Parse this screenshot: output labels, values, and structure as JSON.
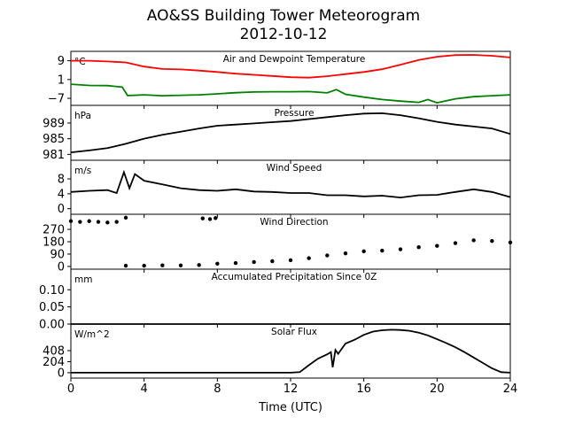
{
  "figure": {
    "title": "AO&SS Building Tower Meteorogram",
    "date": "2012-10-12",
    "xlabel": "Time (UTC)"
  },
  "chart_data": [
    {
      "type": "line",
      "title": "Air and Dewpoint Temperature",
      "unit": "°C",
      "x_ticks": [
        0,
        4,
        8,
        12,
        16,
        20,
        24
      ],
      "y_ticks": [
        9,
        1,
        -7
      ],
      "ylim": [
        -10,
        13
      ],
      "series": [
        {
          "color": "#ff0000",
          "x": [
            0,
            1,
            2,
            3,
            4,
            5,
            6,
            7,
            8,
            9,
            10,
            11,
            12,
            13,
            14,
            15,
            16,
            17,
            18,
            19,
            20,
            21,
            22,
            23,
            24
          ],
          "y": [
            9,
            9,
            8.7,
            8.3,
            6.5,
            5.5,
            5.3,
            4.8,
            4.2,
            3.5,
            3,
            2.5,
            2,
            1.8,
            2.4,
            3.3,
            4.2,
            5.4,
            7.3,
            9.3,
            10.7,
            11.4,
            11.5,
            11.1,
            10.4
          ]
        },
        {
          "color": "#008000",
          "x": [
            0,
            1,
            2,
            2.8,
            3.1,
            4,
            5,
            6,
            7,
            8,
            9,
            10,
            11,
            12,
            13,
            14,
            14.5,
            15,
            16,
            17,
            18,
            19,
            19.5,
            20,
            21,
            22,
            23,
            24
          ],
          "y": [
            -1,
            -1.5,
            -1.6,
            -2.2,
            -5.8,
            -5.5,
            -5.9,
            -5.7,
            -5.5,
            -5.1,
            -4.6,
            -4.3,
            -4.2,
            -4.2,
            -4.1,
            -4.7,
            -3.3,
            -5.3,
            -6.5,
            -7.5,
            -8.2,
            -8.7,
            -7.5,
            -8.9,
            -7.2,
            -6.3,
            -5.9,
            -5.5
          ]
        }
      ]
    },
    {
      "type": "line",
      "title": "Pressure",
      "unit": "hPa",
      "y_ticks": [
        989,
        985,
        981
      ],
      "ylim": [
        979.5,
        993.5
      ],
      "series": [
        {
          "color": "#000000",
          "x": [
            0,
            1,
            2,
            3,
            4,
            5,
            6,
            7,
            8,
            9,
            10,
            11,
            12,
            13,
            14,
            15,
            16,
            17,
            18,
            19,
            20,
            21,
            22,
            23,
            24
          ],
          "y": [
            981.5,
            982,
            982.6,
            983.7,
            985,
            986,
            986.8,
            987.6,
            988.3,
            988.6,
            988.9,
            989.2,
            989.5,
            990,
            990.5,
            991,
            991.4,
            991.5,
            991,
            990.2,
            989.3,
            988.6,
            988.1,
            987.6,
            986.2
          ]
        }
      ]
    },
    {
      "type": "line",
      "title": "Wind Speed",
      "unit": "m/s",
      "y_ticks": [
        8,
        4,
        0
      ],
      "ylim": [
        -1.5,
        13
      ],
      "series": [
        {
          "color": "#000000",
          "x": [
            0,
            1,
            2,
            2.5,
            2.9,
            3.2,
            3.5,
            4,
            5,
            6,
            7,
            8,
            9,
            10,
            11,
            12,
            13,
            14,
            15,
            16,
            17,
            18,
            19,
            20,
            21,
            22,
            23,
            24
          ],
          "y": [
            4.5,
            4.8,
            5,
            4.2,
            9.8,
            5.5,
            9.3,
            7.5,
            6.5,
            5.5,
            5,
            4.8,
            5.2,
            4.6,
            4.5,
            4.2,
            4.2,
            3.6,
            3.6,
            3.3,
            3.5,
            3,
            3.6,
            3.7,
            4.5,
            5.2,
            4.5,
            3.1
          ]
        }
      ]
    },
    {
      "type": "scatter",
      "title": "Wind Direction",
      "y_ticks": [
        270,
        180,
        90,
        0
      ],
      "ylim": [
        -20,
        380
      ],
      "series": [
        {
          "color": "#000000",
          "x": [
            0,
            0.5,
            1,
            1.5,
            2,
            2.5,
            3,
            7.2,
            7.6,
            7.9,
            3,
            4,
            5,
            6,
            7,
            8,
            9,
            10,
            11,
            12,
            13,
            14,
            15,
            16,
            17,
            18,
            19,
            20,
            21,
            22,
            23,
            24
          ],
          "y": [
            330,
            325,
            330,
            325,
            320,
            325,
            355,
            350,
            345,
            352,
            5,
            5,
            8,
            7,
            10,
            20,
            25,
            32,
            38,
            45,
            60,
            80,
            95,
            110,
            115,
            125,
            140,
            150,
            170,
            190,
            185,
            175
          ]
        }
      ]
    },
    {
      "type": "line",
      "title": "Accumulated Precipitation Since 0Z",
      "unit": "mm",
      "y_ticks": [
        0.1,
        0.05,
        0.0
      ],
      "y_tick_labels": [
        "0.10",
        "0.05",
        "0.00"
      ],
      "ylim": [
        0,
        0.16
      ],
      "series": [
        {
          "color": "#000000",
          "x": [
            0,
            24
          ],
          "y": [
            0,
            0
          ]
        }
      ]
    },
    {
      "type": "line",
      "title": "Solar Flux",
      "unit": "W/m^2",
      "y_ticks": [
        408,
        204,
        0
      ],
      "ylim": [
        -100,
        900
      ],
      "series": [
        {
          "color": "#000000",
          "x": [
            0,
            12,
            12.5,
            13,
            13.5,
            14,
            14.2,
            14.3,
            14.45,
            14.6,
            15,
            15.5,
            16,
            16.5,
            17,
            17.5,
            18,
            18.5,
            19,
            19.5,
            20,
            20.5,
            21,
            21.5,
            22,
            22.5,
            23,
            23.5,
            24
          ],
          "y": [
            0,
            0,
            10,
            140,
            260,
            340,
            380,
            100,
            420,
            350,
            540,
            610,
            700,
            760,
            785,
            795,
            790,
            775,
            740,
            690,
            620,
            550,
            470,
            380,
            280,
            180,
            80,
            10,
            0
          ]
        }
      ]
    }
  ]
}
